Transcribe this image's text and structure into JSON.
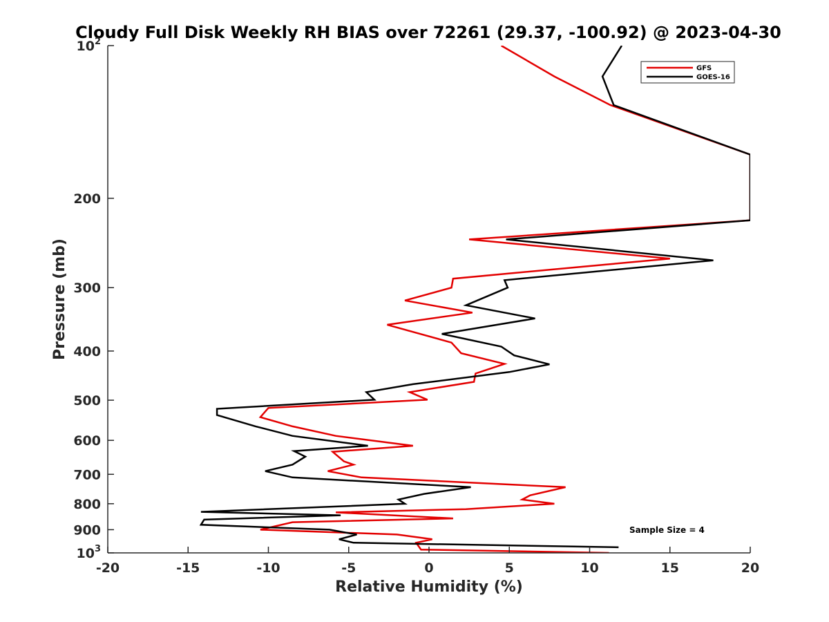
{
  "chart_data": {
    "type": "line",
    "title": "Cloudy Full Disk Weekly RH BIAS over 72261 (29.37, -100.92) @ 2023-04-30",
    "xlabel": "Relative Humidity (%)",
    "ylabel": "Pressure (mb)",
    "xlim": [
      -20,
      20
    ],
    "ylim": [
      100,
      1000
    ],
    "yscale": "log",
    "y_reversed": true,
    "x_ticks": [
      "-20",
      "-15",
      "-10",
      "-5",
      "0",
      "5",
      "10",
      "15",
      "20"
    ],
    "y_ticks": [
      {
        "value": 100,
        "base": "10",
        "exp": "2"
      },
      {
        "value": 200,
        "label": "200"
      },
      {
        "value": 300,
        "label": "300"
      },
      {
        "value": 400,
        "label": "400"
      },
      {
        "value": 500,
        "label": "500"
      },
      {
        "value": 600,
        "label": "600"
      },
      {
        "value": 700,
        "label": "700"
      },
      {
        "value": 800,
        "label": "800"
      },
      {
        "value": 900,
        "label": "900"
      },
      {
        "value": 1000,
        "base": "10",
        "exp": "3"
      }
    ],
    "legend_position": "top-right",
    "annotation": "Sample Size = 4",
    "series": [
      {
        "name": "GFS",
        "color": "#e30000",
        "points": [
          [
            4.5,
            100
          ],
          [
            7.8,
            115
          ],
          [
            11.3,
            131
          ],
          [
            20,
            164
          ],
          [
            20,
            221
          ],
          [
            2.5,
            241
          ],
          [
            15.0,
            263
          ],
          [
            1.5,
            288
          ],
          [
            1.4,
            300
          ],
          [
            -1.5,
            318
          ],
          [
            2.7,
            336
          ],
          [
            -2.6,
            355
          ],
          [
            1.4,
            385
          ],
          [
            2.0,
            404
          ],
          [
            4.7,
            424
          ],
          [
            2.9,
            443
          ],
          [
            2.8,
            460
          ],
          [
            -1.2,
            482
          ],
          [
            -0.1,
            499
          ],
          [
            -10.0,
            518
          ],
          [
            -10.5,
            540
          ],
          [
            -8.5,
            563
          ],
          [
            -5.8,
            588
          ],
          [
            -1.0,
            615
          ],
          [
            -6.0,
            632
          ],
          [
            -5.3,
            660
          ],
          [
            -4.7,
            670
          ],
          [
            -6.3,
            690
          ],
          [
            -4.2,
            710
          ],
          [
            8.5,
            742
          ],
          [
            6.3,
            770
          ],
          [
            5.8,
            785
          ],
          [
            7.8,
            800
          ],
          [
            2.3,
            820
          ],
          [
            -5.8,
            832
          ],
          [
            1.5,
            855
          ],
          [
            -8.5,
            870
          ],
          [
            -10.5,
            900
          ],
          [
            -2.0,
            920
          ],
          [
            0.2,
            940
          ],
          [
            -0.8,
            955
          ],
          [
            -0.5,
            985
          ],
          [
            11.2,
            1000
          ]
        ]
      },
      {
        "name": "GOES-16",
        "color": "#000000",
        "points": [
          [
            12.0,
            100
          ],
          [
            10.8,
            115
          ],
          [
            11.5,
            131
          ],
          [
            20,
            164
          ],
          [
            20,
            221
          ],
          [
            4.8,
            241
          ],
          [
            17.7,
            265
          ],
          [
            4.7,
            290
          ],
          [
            4.9,
            300
          ],
          [
            2.3,
            325
          ],
          [
            6.6,
            345
          ],
          [
            0.8,
            370
          ],
          [
            4.5,
            392
          ],
          [
            5.3,
            408
          ],
          [
            7.5,
            425
          ],
          [
            5.0,
            440
          ],
          [
            -1.0,
            465
          ],
          [
            -3.9,
            482
          ],
          [
            -3.4,
            499
          ],
          [
            -13.2,
            520
          ],
          [
            -13.2,
            535
          ],
          [
            -10.8,
            563
          ],
          [
            -8.5,
            588
          ],
          [
            -3.8,
            615
          ],
          [
            -8.4,
            630
          ],
          [
            -7.7,
            646
          ],
          [
            -8.5,
            670
          ],
          [
            -10.2,
            690
          ],
          [
            -8.5,
            710
          ],
          [
            2.6,
            742
          ],
          [
            -0.3,
            765
          ],
          [
            -1.9,
            785
          ],
          [
            -1.5,
            800
          ],
          [
            -14.2,
            830
          ],
          [
            -5.5,
            843
          ],
          [
            -14.0,
            860
          ],
          [
            -14.2,
            880
          ],
          [
            -6.2,
            900
          ],
          [
            -4.5,
            920
          ],
          [
            -5.6,
            940
          ],
          [
            -4.7,
            955
          ],
          [
            11.8,
            975
          ]
        ]
      }
    ]
  }
}
